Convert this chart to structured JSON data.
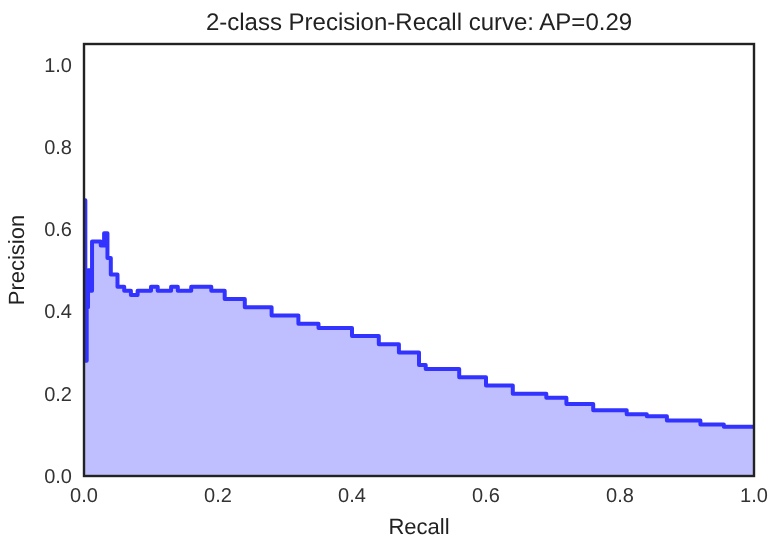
{
  "chart_data": {
    "type": "step",
    "title": "2-class Precision-Recall curve: AP=0.29",
    "xlabel": "Recall",
    "ylabel": "Precision",
    "x": [
      0,
      0.002,
      0.004,
      0.006,
      0.01,
      0.012,
      0.025,
      0.03,
      0.035,
      0.04,
      0.05,
      0.06,
      0.07,
      0.08,
      0.1,
      0.11,
      0.13,
      0.14,
      0.16,
      0.18,
      0.19,
      0.21,
      0.24,
      0.28,
      0.32,
      0.35,
      0.4,
      0.44,
      0.47,
      0.5,
      0.51,
      0.56,
      0.6,
      0.64,
      0.69,
      0.72,
      0.76,
      0.81,
      0.84,
      0.87,
      0.92,
      0.955,
      1
    ],
    "series": [
      {
        "type": "area",
        "color": "#bfbfff",
        "values": [
          0.67,
          0.28,
          0.41,
          0.5,
          0.45,
          0.57,
          0.56,
          0.59,
          0.53,
          0.49,
          0.46,
          0.45,
          0.44,
          0.45,
          0.46,
          0.45,
          0.46,
          0.45,
          0.46,
          0.46,
          0.45,
          0.43,
          0.41,
          0.39,
          0.37,
          0.36,
          0.34,
          0.32,
          0.3,
          0.27,
          0.26,
          0.24,
          0.22,
          0.2,
          0.19,
          0.175,
          0.16,
          0.15,
          0.145,
          0.135,
          0.125,
          0.12,
          0.12
        ]
      },
      {
        "color": "#3333ff",
        "values": [
          0.67,
          0.28,
          0.41,
          0.5,
          0.45,
          0.57,
          0.56,
          0.59,
          0.53,
          0.49,
          0.46,
          0.45,
          0.44,
          0.45,
          0.46,
          0.45,
          0.46,
          0.45,
          0.46,
          0.46,
          0.45,
          0.43,
          0.41,
          0.39,
          0.37,
          0.36,
          0.34,
          0.32,
          0.3,
          0.27,
          0.26,
          0.24,
          0.22,
          0.2,
          0.19,
          0.175,
          0.16,
          0.15,
          0.145,
          0.135,
          0.125,
          0.12,
          0.12
        ]
      }
    ],
    "xlim": [
      0,
      1
    ],
    "ylim": [
      0,
      1.05
    ],
    "xticks": [
      {
        "value": 0,
        "label": "0.0"
      },
      {
        "value": 0.2,
        "label": "0.2"
      },
      {
        "value": 0.4,
        "label": "0.4"
      },
      {
        "value": 0.6,
        "label": "0.6"
      },
      {
        "value": 0.8,
        "label": "0.8"
      },
      {
        "value": 1,
        "label": "1.0"
      }
    ],
    "yticks": [
      {
        "value": 0,
        "label": "0.0"
      },
      {
        "value": 0.2,
        "label": "0.2"
      },
      {
        "value": 0.4,
        "label": "0.4"
      },
      {
        "value": 0.6,
        "label": "0.6"
      },
      {
        "value": 0.8,
        "label": "0.8"
      },
      {
        "value": 1,
        "label": "1.0"
      }
    ],
    "grid": false
  }
}
